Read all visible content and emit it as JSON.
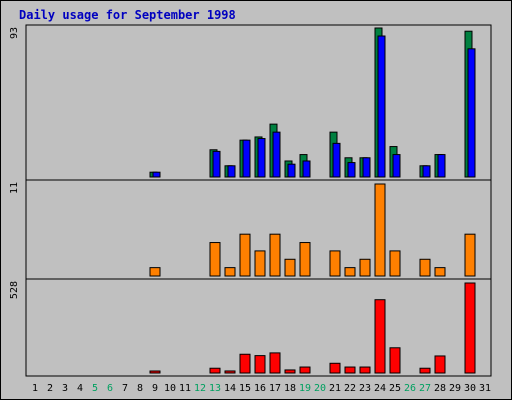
{
  "chart_data": {
    "type": "bar",
    "title": "Daily usage for September 1998",
    "categories": [
      "1",
      "2",
      "3",
      "4",
      "5",
      "6",
      "7",
      "8",
      "9",
      "10",
      "11",
      "12",
      "13",
      "14",
      "15",
      "16",
      "17",
      "18",
      "19",
      "20",
      "21",
      "22",
      "23",
      "24",
      "25",
      "26",
      "27",
      "28",
      "29",
      "30",
      "31"
    ],
    "weekend_days": [
      "5",
      "6",
      "12",
      "13",
      "19",
      "20",
      "26",
      "27"
    ],
    "panels": [
      {
        "name": "hits-files",
        "max_label": "93",
        "ylim": [
          0,
          93
        ],
        "series": [
          {
            "color": "#008040",
            "values": [
              0,
              0,
              0,
              0,
              0,
              0,
              0,
              0,
              3,
              0,
              0,
              0,
              17,
              7,
              23,
              25,
              33,
              10,
              14,
              0,
              28,
              12,
              12,
              93,
              19,
              0,
              7,
              14,
              0,
              91,
              0
            ]
          },
          {
            "color": "#0000ff",
            "values": [
              0,
              0,
              0,
              0,
              0,
              0,
              0,
              0,
              3,
              0,
              0,
              0,
              16,
              7,
              23,
              24,
              28,
              8,
              10,
              0,
              21,
              9,
              12,
              88,
              14,
              0,
              7,
              14,
              0,
              80,
              0
            ]
          }
        ]
      },
      {
        "name": "pages",
        "max_label": "11",
        "ylim": [
          0,
          11
        ],
        "series": [
          {
            "color": "#ff8000",
            "values": [
              0,
              0,
              0,
              0,
              0,
              0,
              0,
              0,
              1,
              0,
              0,
              0,
              4,
              1,
              5,
              3,
              5,
              2,
              4,
              0,
              3,
              1,
              2,
              11,
              3,
              0,
              2,
              1,
              0,
              5,
              0
            ]
          }
        ]
      },
      {
        "name": "kbytes",
        "max_label": "528",
        "ylim": [
          0,
          528
        ],
        "series": [
          {
            "color": "#ff0000",
            "values": [
              0,
              0,
              0,
              0,
              0,
              0,
              0,
              0,
              4,
              0,
              0,
              0,
              28,
              12,
              110,
              102,
              118,
              18,
              35,
              0,
              57,
              35,
              35,
              430,
              148,
              0,
              28,
              100,
              0,
              528,
              0
            ]
          }
        ]
      }
    ],
    "colors": {
      "weekday_label": "#000000",
      "weekend_label": "#00a060",
      "frame": "#000000",
      "plot_bg": "#c0c0c0"
    }
  }
}
